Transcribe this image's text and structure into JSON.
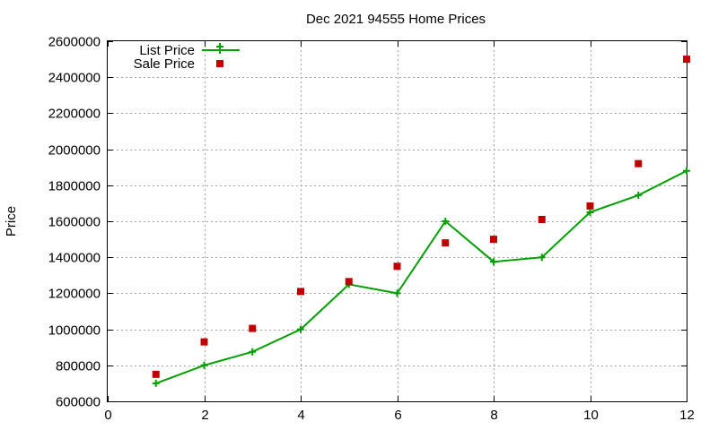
{
  "chart_data": {
    "type": "line",
    "title": "Dec 2021 94555 Home Prices",
    "xlabel": "",
    "ylabel": "Price",
    "xlim": [
      0,
      12
    ],
    "ylim": [
      600000,
      2600000
    ],
    "xticks": [
      0,
      2,
      4,
      6,
      8,
      10,
      12
    ],
    "yticks": [
      600000,
      800000,
      1000000,
      1200000,
      1400000,
      1600000,
      1800000,
      2000000,
      2200000,
      2400000,
      2600000
    ],
    "grid": true,
    "legend_position": "top-left",
    "series": [
      {
        "name": "List Price",
        "style": "linespoints",
        "color": "#00a000",
        "x": [
          1,
          2,
          3,
          4,
          5,
          6,
          7,
          8,
          9,
          10,
          11,
          12
        ],
        "y": [
          700000,
          800000,
          875000,
          1000000,
          1250000,
          1200000,
          1600000,
          1375000,
          1400000,
          1650000,
          1745000,
          1880000
        ]
      },
      {
        "name": "Sale Price",
        "style": "points",
        "color": "#c00000",
        "x": [
          1,
          2,
          3,
          4,
          5,
          6,
          7,
          8,
          9,
          10,
          11,
          12
        ],
        "y": [
          750000,
          930000,
          1005000,
          1210000,
          1265000,
          1350000,
          1480000,
          1500000,
          1610000,
          1685000,
          1920000,
          2500000
        ]
      }
    ]
  }
}
